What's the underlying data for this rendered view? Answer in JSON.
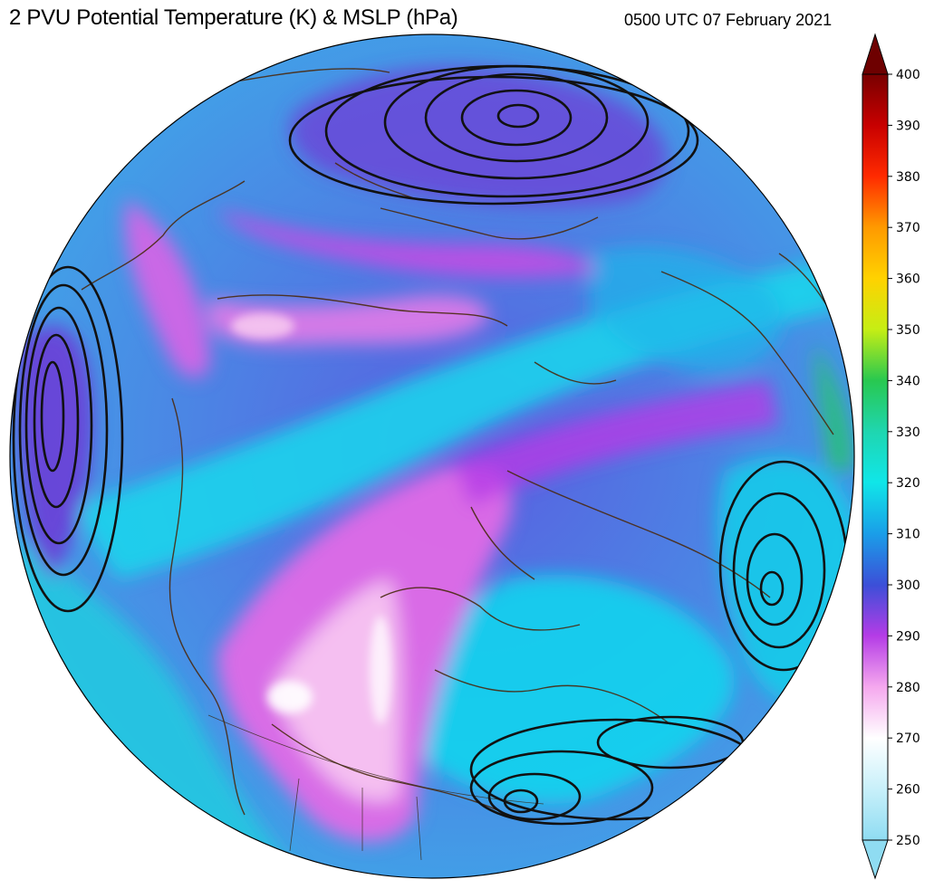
{
  "header": {
    "title": "2 PVU Potential Temperature (K) & MSLP (hPa)",
    "timestamp": "0500 UTC 07 February 2021"
  },
  "colorbar": {
    "min": 250,
    "max": 400,
    "ticks": [
      400,
      390,
      380,
      370,
      360,
      350,
      340,
      330,
      320,
      310,
      300,
      290,
      280,
      270,
      260,
      250
    ],
    "colors": {
      "250": "#8fdcf2",
      "260": "#c8f0fa",
      "270": "#ffffff",
      "280": "#f5a8ee",
      "290": "#b43ce6",
      "300": "#3c4fd8",
      "310": "#1a9ee8",
      "320": "#10e6e8",
      "330": "#1fd6b0",
      "340": "#28c850",
      "350": "#c6ee14",
      "360": "#ffd200",
      "370": "#ff9a00",
      "380": "#ff2a00",
      "390": "#c80000",
      "400": "#780000"
    }
  }
}
